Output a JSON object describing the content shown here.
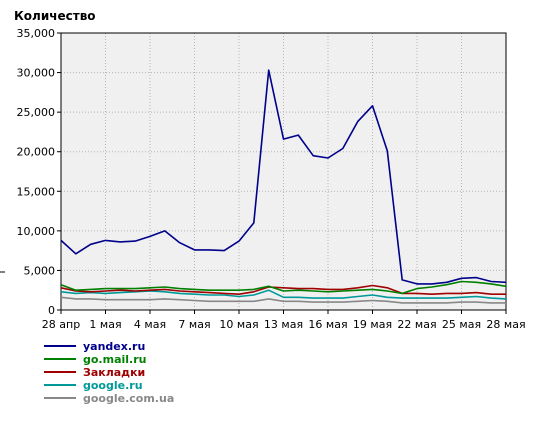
{
  "chart_data": {
    "type": "line",
    "ylabel": "Количество",
    "ylim": [
      0,
      35000
    ],
    "y_ticks": [
      0,
      5000,
      10000,
      15000,
      20000,
      25000,
      30000,
      35000
    ],
    "y_tick_labels": [
      "0",
      "5,000",
      "10,000",
      "15,000",
      "20,000",
      "25,000",
      "30,000",
      "35,000"
    ],
    "x_tick_labels": [
      "28 апр",
      "1 мая",
      "4 мая",
      "7 мая",
      "10 мая",
      "13 мая",
      "16 мая",
      "19 мая",
      "22 мая",
      "25 мая",
      "28 мая"
    ],
    "grid": true,
    "legend_position": "bottom-left",
    "series": [
      {
        "name": "yandex.ru",
        "color": "#00008b",
        "values": [
          8800,
          7100,
          8300,
          8800,
          8600,
          8700,
          9300,
          10000,
          8500,
          7600,
          7600,
          7500,
          8700,
          11000,
          30300,
          21600,
          22100,
          19500,
          19200,
          20400,
          23800,
          25800,
          20100,
          3800,
          3300,
          3300,
          3500,
          4000,
          4100,
          3600,
          3500
        ]
      },
      {
        "name": "go.mail.ru",
        "color": "#008000",
        "values": [
          3200,
          2500,
          2600,
          2700,
          2700,
          2700,
          2800,
          2900,
          2700,
          2600,
          2500,
          2500,
          2500,
          2600,
          3000,
          2400,
          2500,
          2400,
          2300,
          2400,
          2500,
          2600,
          2400,
          2100,
          2700,
          2900,
          3200,
          3600,
          3500,
          3300,
          3000
        ]
      },
      {
        "name": "Закладки",
        "color": "#a00000",
        "values": [
          2800,
          2400,
          2300,
          2400,
          2500,
          2400,
          2500,
          2600,
          2400,
          2300,
          2200,
          2100,
          2000,
          2300,
          2900,
          2800,
          2700,
          2700,
          2600,
          2600,
          2800,
          3100,
          2800,
          2100,
          2100,
          2000,
          2100,
          2100,
          2200,
          2000,
          2000
        ]
      },
      {
        "name": "google.ru",
        "color": "#009999",
        "values": [
          2300,
          2100,
          2200,
          2100,
          2200,
          2300,
          2400,
          2300,
          2100,
          2000,
          1900,
          1900,
          1700,
          1900,
          2500,
          1600,
          1600,
          1500,
          1500,
          1500,
          1700,
          1900,
          1600,
          1500,
          1500,
          1500,
          1500,
          1600,
          1700,
          1500,
          1400
        ]
      },
      {
        "name": "google.com.ua",
        "color": "#888888",
        "values": [
          1600,
          1400,
          1400,
          1300,
          1300,
          1300,
          1300,
          1400,
          1300,
          1200,
          1100,
          1100,
          1100,
          1100,
          1400,
          1100,
          1100,
          1000,
          1000,
          1000,
          1100,
          1200,
          1100,
          900,
          900,
          900,
          900,
          1000,
          1000,
          900,
          900
        ]
      }
    ]
  }
}
